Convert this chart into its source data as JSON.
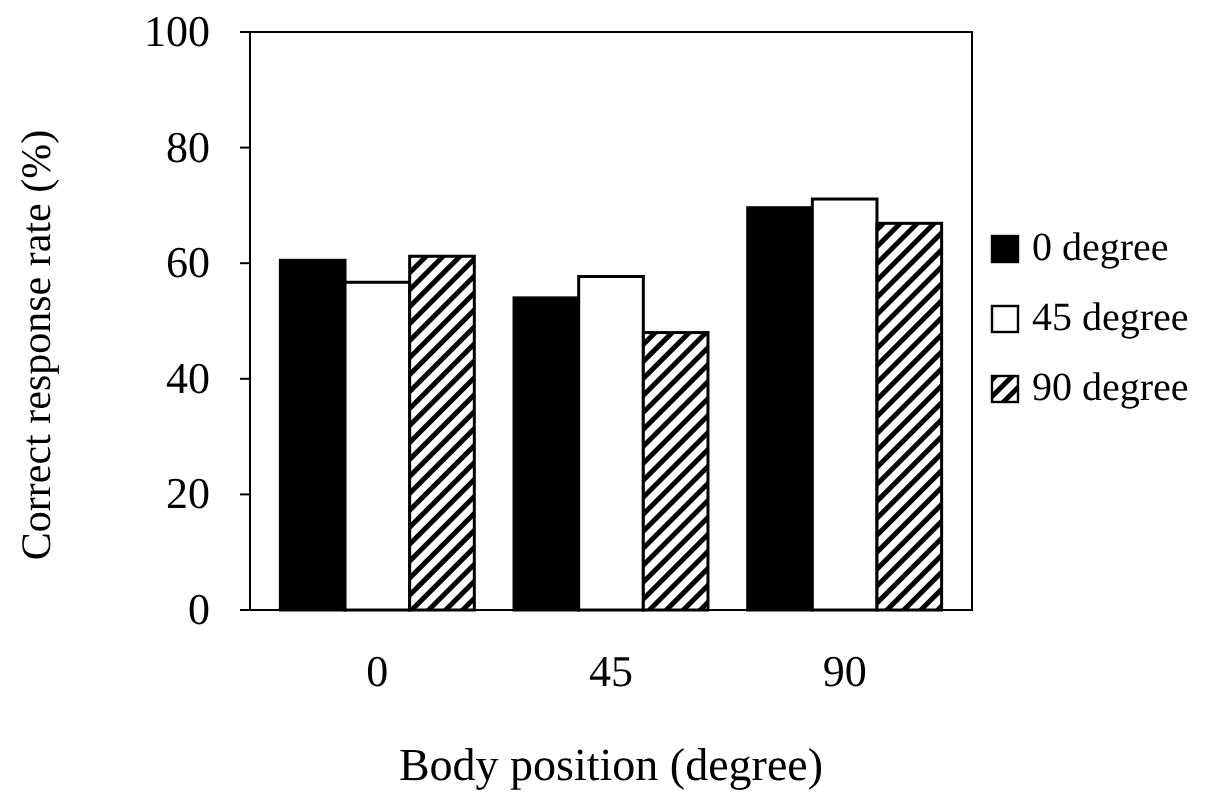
{
  "chart_data": {
    "type": "bar",
    "xlabel": "Body position (degree)",
    "ylabel": "Correct response rate (%)",
    "categories": [
      "0",
      "45",
      "90"
    ],
    "series": [
      {
        "name": "0 degree",
        "color": "#000000",
        "values": [
          60.5,
          54.0,
          69.6
        ]
      },
      {
        "name": "45 degree",
        "color": "#ffffff",
        "values": [
          56.7,
          57.7,
          71.1
        ]
      },
      {
        "name": "90 degree",
        "color": "#000000",
        "values": [
          61.2,
          48.0,
          66.9
        ]
      }
    ],
    "ylim": [
      0,
      100
    ],
    "yticks": [
      0,
      20,
      40,
      60,
      80,
      100
    ],
    "legend": "right",
    "grid": false
  }
}
